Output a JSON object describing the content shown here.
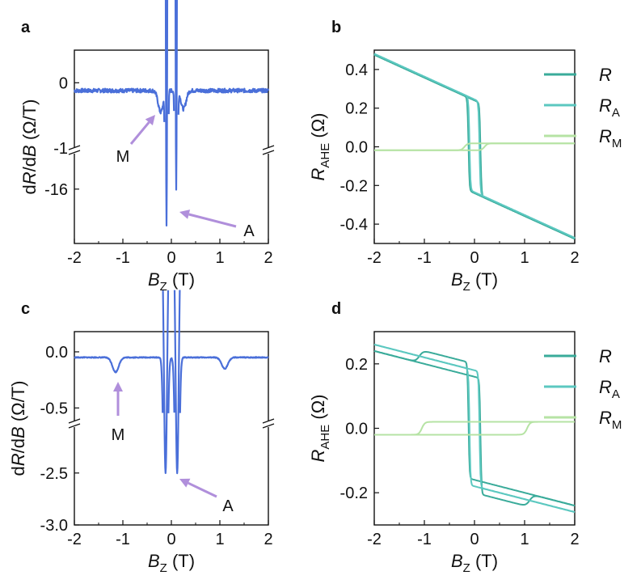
{
  "figure": {
    "panels": [
      "a",
      "b",
      "c",
      "d"
    ]
  },
  "chart_data": [
    {
      "panel": "a",
      "type": "line",
      "xlabel_main": "B",
      "xlabel_sub": "Z",
      "xlabel_unit": "(T)",
      "ylabel": "dR/dB (Ω/T)",
      "ylabel_parts": [
        "d",
        "R",
        "/d",
        "B",
        " (Ω/T)"
      ],
      "xlim": [
        -2,
        2
      ],
      "xticks": [
        "-2",
        "-1",
        "0",
        "1",
        "2"
      ],
      "yticks_upper": [
        "0",
        "-1"
      ],
      "yticks_lower": [
        "-16"
      ],
      "axis_break": true,
      "upper_range": [
        -1,
        0.5
      ],
      "lower_range": [
        -17.5,
        -15
      ],
      "series": [
        {
          "name": "dR/dB",
          "color": "#4a6fd9",
          "baseline": -0.12,
          "features": [
            {
              "x": -0.1,
              "depth": -17.0,
              "width": 0.03,
              "kind": "sharp-dip"
            },
            {
              "x": 0.1,
              "depth": -16.0,
              "width": 0.03,
              "kind": "sharp-dip"
            },
            {
              "x": -0.22,
              "depth": -0.45,
              "width": 0.08,
              "kind": "small-dip"
            },
            {
              "x": 0.25,
              "depth": -0.4,
              "width": 0.08,
              "kind": "small-dip"
            }
          ]
        }
      ],
      "annotations": [
        {
          "text": "M",
          "x": -0.4,
          "y": -0.5,
          "color": "#b08fdb"
        },
        {
          "text": "A",
          "x": 0.15,
          "y": -16.0,
          "color": "#b08fdb"
        }
      ]
    },
    {
      "panel": "b",
      "type": "line",
      "xlabel_main": "B",
      "xlabel_sub": "Z",
      "xlabel_unit": "(T)",
      "ylabel_main": "R",
      "ylabel_sub": "AHE",
      "ylabel_unit": "(Ω)",
      "xlim": [
        -2,
        2
      ],
      "ylim": [
        -0.5,
        0.5
      ],
      "xticks": [
        "-2",
        "-1",
        "0",
        "1",
        "2"
      ],
      "yticks": [
        "0.4",
        "0.2",
        "0.0",
        "-0.2",
        "-0.4"
      ],
      "legend": [
        {
          "main": "R",
          "sub": "",
          "color": "#3aab9a"
        },
        {
          "main": "R",
          "sub": "A",
          "color": "#5cc8c0"
        },
        {
          "main": "R",
          "sub": "M",
          "color": "#b6e3a4"
        }
      ],
      "series": [
        {
          "name": "R",
          "color": "#3aab9a",
          "coercive": 0.12,
          "jump": 0.24,
          "slope": -0.118,
          "offset": 0.0
        },
        {
          "name": "R_A",
          "color": "#5cc8c0",
          "coercive": 0.1,
          "jump": 0.24,
          "slope": -0.118,
          "offset": 0.005
        },
        {
          "name": "R_M",
          "color": "#b6e3a4",
          "coercive": 0.2,
          "jump": 0.018,
          "slope": 0.0,
          "offset": 0.0
        }
      ]
    },
    {
      "panel": "c",
      "type": "line",
      "xlabel_main": "B",
      "xlabel_sub": "Z",
      "xlabel_unit": "(T)",
      "ylabel_parts": [
        "d",
        "R",
        "/d",
        "B",
        " (Ω/T)"
      ],
      "xlim": [
        -2,
        2
      ],
      "xticks": [
        "-2",
        "-1",
        "0",
        "1",
        "2"
      ],
      "yticks_upper": [
        "0.0",
        "-0.5"
      ],
      "yticks_lower": [
        "-2.5",
        "-3.0"
      ],
      "axis_break": true,
      "upper_range": [
        -0.62,
        0.18
      ],
      "lower_range": [
        -3.0,
        -2.05
      ],
      "series": [
        {
          "name": "dR/dB",
          "color": "#4a6fd9",
          "baseline": -0.05,
          "features": [
            {
              "x": -0.12,
              "depth": -2.5,
              "width": 0.06,
              "kind": "sharp-dip"
            },
            {
              "x": 0.12,
              "depth": -2.5,
              "width": 0.06,
              "kind": "sharp-dip"
            },
            {
              "x": -1.15,
              "depth": -0.18,
              "width": 0.1,
              "kind": "small-dip"
            },
            {
              "x": 1.1,
              "depth": -0.15,
              "width": 0.1,
              "kind": "small-dip"
            }
          ]
        }
      ],
      "annotations": [
        {
          "text": "M",
          "x": -1.15,
          "y": -0.2,
          "color": "#b08fdb"
        },
        {
          "text": "A",
          "x": 0.18,
          "y": -2.5,
          "color": "#b08fdb"
        }
      ]
    },
    {
      "panel": "d",
      "type": "line",
      "xlabel_main": "B",
      "xlabel_sub": "Z",
      "xlabel_unit": "(T)",
      "ylabel_main": "R",
      "ylabel_sub": "AHE",
      "ylabel_unit": "(Ω)",
      "xlim": [
        -2,
        2
      ],
      "ylim": [
        -0.3,
        0.3
      ],
      "xticks": [
        "-2",
        "-1",
        "0",
        "1",
        "2"
      ],
      "yticks": [
        "0.2",
        "0.0",
        "-0.2"
      ],
      "legend": [
        {
          "main": "R",
          "sub": "",
          "color": "#3aab9a"
        },
        {
          "main": "R",
          "sub": "A",
          "color": "#5cc8c0"
        },
        {
          "main": "R",
          "sub": "M",
          "color": "#b6e3a4"
        }
      ],
      "series": [
        {
          "name": "R",
          "color": "#3aab9a",
          "coercive": 0.12,
          "jump": 0.18,
          "slope": -0.04,
          "offset": 0.0,
          "m_coercive": 1.1,
          "m_jump": 0.02
        },
        {
          "name": "R_A",
          "color": "#5cc8c0",
          "coercive": 0.1,
          "jump": 0.18,
          "slope": -0.04,
          "offset": 0.0
        },
        {
          "name": "R_M",
          "color": "#b6e3a4",
          "coercive": 1.05,
          "jump": 0.02,
          "slope": 0.0,
          "offset": 0.0
        }
      ]
    }
  ]
}
